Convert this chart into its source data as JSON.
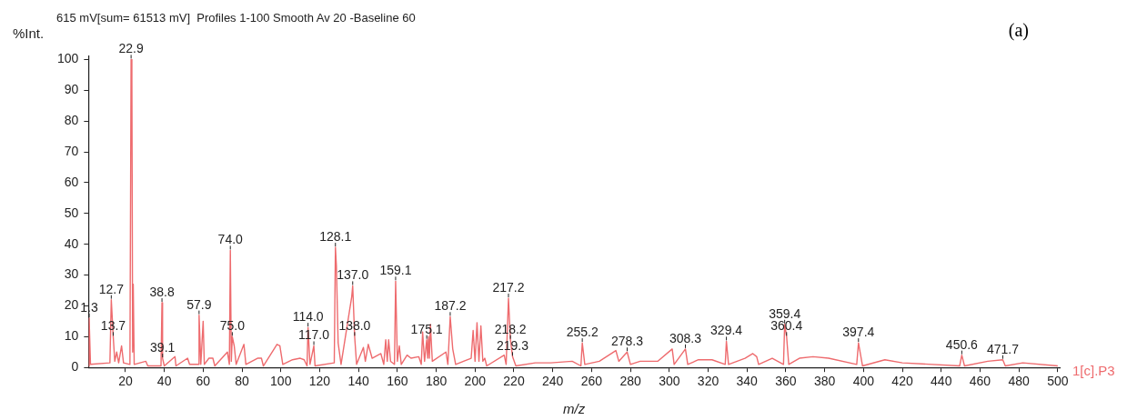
{
  "chart_data": {
    "type": "line",
    "title": "615 mV[sum= 61513 mV]  Profiles 1-100 Smooth Av 20 -Baseline 60",
    "xlabel": "m/z",
    "ylabel": "%Int.",
    "xlim": [
      1,
      501
    ],
    "xticks": [
      20,
      40,
      60,
      80,
      100,
      120,
      140,
      160,
      180,
      200,
      220,
      240,
      260,
      280,
      300,
      320,
      340,
      360,
      380,
      400,
      420,
      440,
      460,
      480,
      500
    ],
    "ylim": [
      0,
      101
    ],
    "yticks": [
      0,
      10,
      20,
      30,
      40,
      50,
      60,
      70,
      80,
      90,
      100
    ],
    "grid": false,
    "legend": false,
    "marker": "none",
    "line_style": "solid",
    "annotations": [
      "(a)",
      {
        "text": "1.3",
        "x": 1.3,
        "y": 16
      },
      {
        "text": "12.7",
        "x": 12.7,
        "y": 22
      },
      {
        "text": "13.7",
        "x": 13.7,
        "y": 10
      },
      {
        "text": "22.9",
        "x": 22.9,
        "y": 100
      },
      {
        "text": "38.8",
        "x": 38.8,
        "y": 21
      },
      {
        "text": "39.1",
        "x": 39.1,
        "y": 3
      },
      {
        "text": "57.9",
        "x": 57.9,
        "y": 17
      },
      {
        "text": "74.0",
        "x": 74,
        "y": 38
      },
      {
        "text": "75.0",
        "x": 75,
        "y": 10
      },
      {
        "text": "114.0",
        "x": 114,
        "y": 13
      },
      {
        "text": "117.0",
        "x": 117,
        "y": 7
      },
      {
        "text": "128.1",
        "x": 128.1,
        "y": 39
      },
      {
        "text": "137.0",
        "x": 137,
        "y": 26.5
      },
      {
        "text": "138.0",
        "x": 138,
        "y": 10
      },
      {
        "text": "159.1",
        "x": 159.1,
        "y": 28
      },
      {
        "text": "175.1",
        "x": 175.1,
        "y": 9
      },
      {
        "text": "187.2",
        "x": 187.2,
        "y": 16.5
      },
      {
        "text": "217.2",
        "x": 217.2,
        "y": 22.5
      },
      {
        "text": "218.2",
        "x": 218.2,
        "y": 9
      },
      {
        "text": "219.3",
        "x": 219.3,
        "y": 3.5
      },
      {
        "text": "255.2",
        "x": 255.2,
        "y": 8
      },
      {
        "text": "278.3",
        "x": 278.3,
        "y": 5
      },
      {
        "text": "308.3",
        "x": 308.3,
        "y": 6
      },
      {
        "text": "329.4",
        "x": 329.4,
        "y": 8.5
      },
      {
        "text": "359.4",
        "x": 359.4,
        "y": 14
      },
      {
        "text": "360.4",
        "x": 360.4,
        "y": 10
      },
      {
        "text": "397.4",
        "x": 397.4,
        "y": 8
      },
      {
        "text": "450.6",
        "x": 450.6,
        "y": 4
      },
      {
        "text": "471.7",
        "x": 471.7,
        "y": 2.5
      }
    ],
    "series": [
      {
        "name": "1[c].P3",
        "color": "#ee6b6e",
        "x": [
          1,
          1.3,
          2,
          12,
          12.7,
          13.7,
          14.5,
          15.5,
          16.5,
          18,
          19,
          22.3,
          22.9,
          23.3,
          23.7,
          24,
          24.5,
          30.5,
          31.5,
          38.3,
          38.8,
          39.1,
          40,
          45.5,
          46,
          52,
          53,
          57.5,
          57.9,
          58.8,
          60,
          60.6,
          63,
          65,
          66,
          72.5,
          73.5,
          74,
          74.5,
          75,
          76,
          77,
          81,
          82,
          88,
          90,
          91,
          98,
          99.5,
          101,
          106,
          110,
          112,
          113.5,
          114,
          115,
          117,
          117.6,
          127.5,
          128.1,
          128.6,
          129.5,
          131,
          136.5,
          137,
          138,
          139,
          142.5,
          143.5,
          145,
          147,
          151.5,
          153,
          154,
          154.8,
          155.5,
          156.5,
          158.5,
          159.1,
          160,
          161,
          162,
          165,
          167,
          171,
          172.3,
          173,
          174,
          175.1,
          175.6,
          176,
          176.5,
          177,
          178,
          185,
          186,
          187.2,
          188.5,
          190,
          198,
          199,
          200,
          201,
          202,
          203,
          204,
          205,
          206,
          215,
          216,
          217.2,
          218.2,
          219.3,
          221,
          231,
          239,
          250,
          254.5,
          255.2,
          256.5,
          264,
          272.5,
          274,
          278.3,
          280,
          285,
          290,
          294,
          301.5,
          302.5,
          308.3,
          309.5,
          315,
          322,
          328.8,
          329.4,
          330.5,
          339,
          343,
          345,
          346,
          353,
          358.8,
          359.4,
          360.4,
          361.5,
          367,
          374,
          382,
          396.5,
          397.4,
          399.5,
          411,
          420,
          449.5,
          450.6,
          452,
          464,
          471.7,
          473,
          482,
          500
        ],
        "values": [
          0.5,
          16,
          1,
          1.5,
          22,
          10,
          2,
          5,
          1.5,
          7,
          1.5,
          1,
          100,
          94,
          5,
          27,
          1,
          2,
          0.5,
          0.5,
          21,
          3,
          0.5,
          3.5,
          0.5,
          3,
          1,
          1,
          17,
          1,
          15,
          1,
          3,
          3,
          0.5,
          5,
          1,
          38,
          2,
          10,
          7,
          1,
          7.5,
          1,
          3,
          3,
          0.5,
          7.5,
          7,
          1,
          2.5,
          3,
          2.5,
          0.5,
          13,
          1,
          7,
          0.5,
          1.5,
          39,
          33,
          8,
          1,
          23,
          26.5,
          10,
          1,
          6.5,
          2,
          7.5,
          3,
          4.5,
          1,
          9,
          2,
          9,
          2,
          1,
          28,
          2,
          7,
          1,
          4,
          3,
          3.5,
          1,
          11.5,
          2,
          9,
          3,
          10,
          3,
          14,
          2,
          5,
          1,
          16.5,
          6,
          1,
          3,
          12,
          2,
          14.5,
          2,
          13.5,
          2,
          3,
          0.5,
          4,
          1,
          22.5,
          9,
          3.5,
          0.5,
          1.5,
          1.5,
          2,
          0.5,
          8,
          1,
          2,
          5.5,
          2,
          5,
          1,
          2,
          2,
          2,
          6,
          1,
          6,
          1,
          2.5,
          2.5,
          1,
          8.5,
          1,
          3,
          4.5,
          3.5,
          1,
          3,
          1,
          14,
          10,
          1,
          3,
          3.5,
          3,
          1,
          8,
          0.5,
          2.5,
          1.5,
          0.5,
          4,
          0.5,
          2,
          2.5,
          0.5,
          1.5,
          0.5
        ]
      }
    ]
  }
}
